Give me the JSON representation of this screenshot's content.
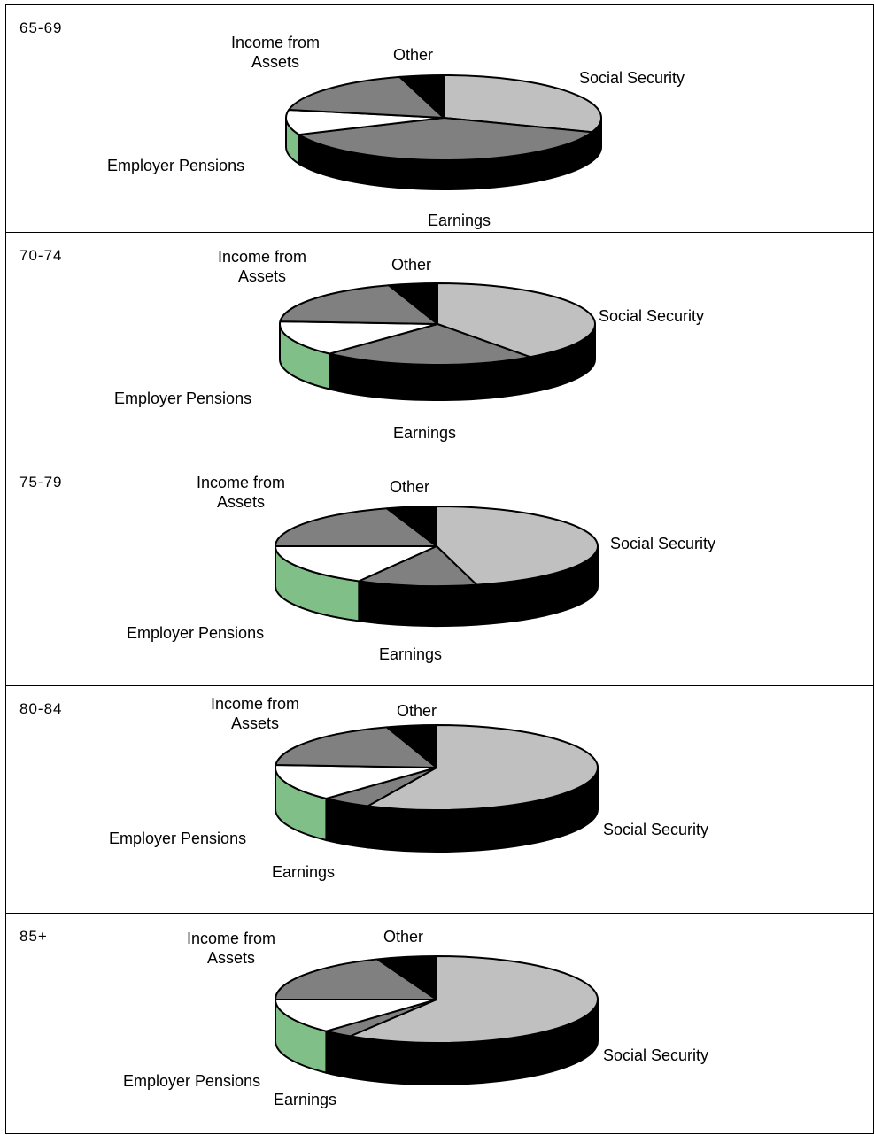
{
  "chart_data": [
    {
      "type": "pie",
      "title": "65-69",
      "labels": [
        "Social Security",
        "Earnings",
        "Employer Pensions",
        "Income from Assets",
        "Other"
      ],
      "values": [
        30.5,
        38,
        9.5,
        17.5,
        4.5
      ],
      "colors": [
        "#c0c0c0",
        "#808080",
        "#ffffff",
        "#808080",
        "#000000"
      ]
    },
    {
      "type": "pie",
      "title": "70-74",
      "labels": [
        "Social Security",
        "Earnings",
        "Employer Pensions",
        "Income from Assets",
        "Other"
      ],
      "values": [
        40,
        22,
        14,
        19,
        5
      ],
      "colors": [
        "#c0c0c0",
        "#808080",
        "#ffffff",
        "#808080",
        "#000000"
      ]
    },
    {
      "type": "pie",
      "title": "75-79",
      "labels": [
        "Social Security",
        "Earnings",
        "Employer Pensions",
        "Income from Assets",
        "Other"
      ],
      "values": [
        46,
        12,
        17,
        20,
        5
      ],
      "colors": [
        "#c0c0c0",
        "#808080",
        "#ffffff",
        "#808080",
        "#000000"
      ]
    },
    {
      "type": "pie",
      "title": "80-84",
      "labels": [
        "Social Security",
        "Earnings",
        "Employer Pensions",
        "Income from Assets",
        "Other"
      ],
      "values": [
        57,
        5,
        14,
        19,
        5
      ],
      "colors": [
        "#c0c0c0",
        "#808080",
        "#ffffff",
        "#808080",
        "#000000"
      ]
    },
    {
      "type": "pie",
      "title": "85+",
      "labels": [
        "Social Security",
        "Earnings",
        "Employer Pensions",
        "Income from Assets",
        "Other"
      ],
      "values": [
        59,
        3,
        13,
        19,
        6
      ],
      "colors": [
        "#c0c0c0",
        "#808080",
        "#ffffff",
        "#808080",
        "#000000"
      ]
    }
  ],
  "side_color": "#000000",
  "pension_side_color": "#80c088"
}
